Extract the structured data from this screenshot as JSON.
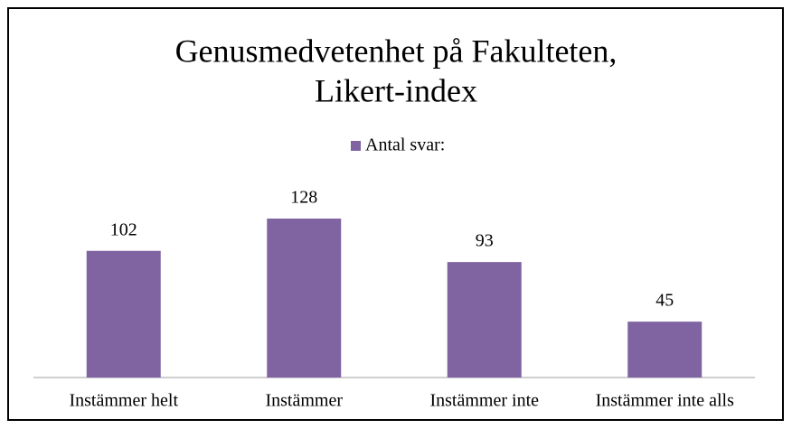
{
  "chart_data": {
    "type": "bar",
    "title": [
      "Genusmedvetenhet  på Fakulteten,",
      "Likert-index"
    ],
    "categories": [
      "Instämmer helt",
      "Instämmer",
      "Instämmer inte",
      "Instämmer inte alls"
    ],
    "series": [
      {
        "name": "Antal svar:",
        "color": "#8064a2",
        "values": [
          102,
          128,
          93,
          45
        ]
      }
    ]
  }
}
